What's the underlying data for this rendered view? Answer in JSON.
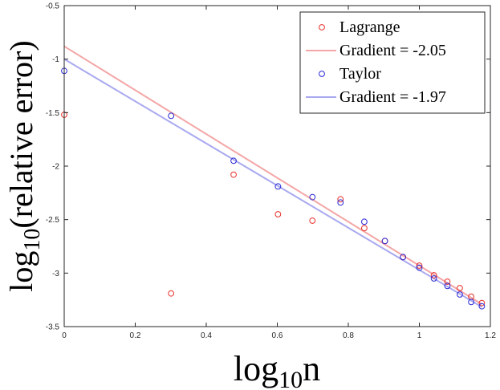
{
  "chart_data": {
    "type": "scatter",
    "title": "",
    "xlabel": {
      "base": "log",
      "sub": "10",
      "arg": "n"
    },
    "ylabel": {
      "base": "log",
      "sub": "10",
      "arg": "(relative error)"
    },
    "xlim": [
      0,
      1.2
    ],
    "ylim": [
      -3.5,
      -0.5
    ],
    "xticks": [
      0,
      0.2,
      0.4,
      0.6,
      0.8,
      1,
      1.2
    ],
    "yticks": [
      -3.5,
      -3,
      -2.5,
      -2,
      -1.5,
      -1,
      -0.5
    ],
    "xtick_labels": [
      "0",
      "0.2",
      "0.4",
      "0.6",
      "0.8",
      "1",
      "1.2"
    ],
    "ytick_labels": [
      "-3.5",
      "-3",
      "-2.5",
      "-2",
      "-1.5",
      "-1",
      "-0.5"
    ],
    "legend_position": "top-right",
    "legend": [
      {
        "label": "Lagrange",
        "kind": "marker",
        "series": "lagrange"
      },
      {
        "label": "Gradient = -2.05",
        "kind": "line",
        "series": "lagrange_fit"
      },
      {
        "label": "Taylor",
        "kind": "marker",
        "series": "taylor"
      },
      {
        "label": "Gradient = -1.97",
        "kind": "line",
        "series": "taylor_fit"
      }
    ],
    "series": [
      {
        "id": "lagrange",
        "name": "Lagrange",
        "kind": "scatter",
        "color": "#e8302a",
        "x": [
          0,
          0.301,
          0.477,
          0.602,
          0.699,
          0.778,
          0.845,
          0.903,
          0.954,
          1.0,
          1.041,
          1.079,
          1.114,
          1.146,
          1.176
        ],
        "y": [
          -1.52,
          -3.19,
          -2.08,
          -2.45,
          -2.51,
          -2.31,
          -2.58,
          -2.7,
          -2.85,
          -2.93,
          -3.02,
          -3.08,
          -3.14,
          -3.22,
          -3.28
        ]
      },
      {
        "id": "taylor",
        "name": "Taylor",
        "kind": "scatter",
        "color": "#2a2ad6",
        "x": [
          0,
          0.301,
          0.477,
          0.602,
          0.699,
          0.778,
          0.845,
          0.903,
          0.954,
          1.0,
          1.041,
          1.079,
          1.114,
          1.146,
          1.176
        ],
        "y": [
          -1.11,
          -1.53,
          -1.95,
          -2.19,
          -2.29,
          -2.34,
          -2.52,
          -2.7,
          -2.85,
          -2.95,
          -3.05,
          -3.12,
          -3.2,
          -3.27,
          -3.31
        ]
      },
      {
        "id": "lagrange_fit",
        "name": "Gradient = -2.05",
        "kind": "line",
        "color": "#f4a6a6",
        "gradient": -2.05,
        "intercept": -0.88,
        "x_range": [
          0,
          1.176
        ]
      },
      {
        "id": "taylor_fit",
        "name": "Gradient = -1.97",
        "kind": "line",
        "color": "#a9a9f0",
        "gradient": -1.97,
        "intercept": -1.0,
        "x_range": [
          0,
          1.176
        ]
      }
    ]
  }
}
